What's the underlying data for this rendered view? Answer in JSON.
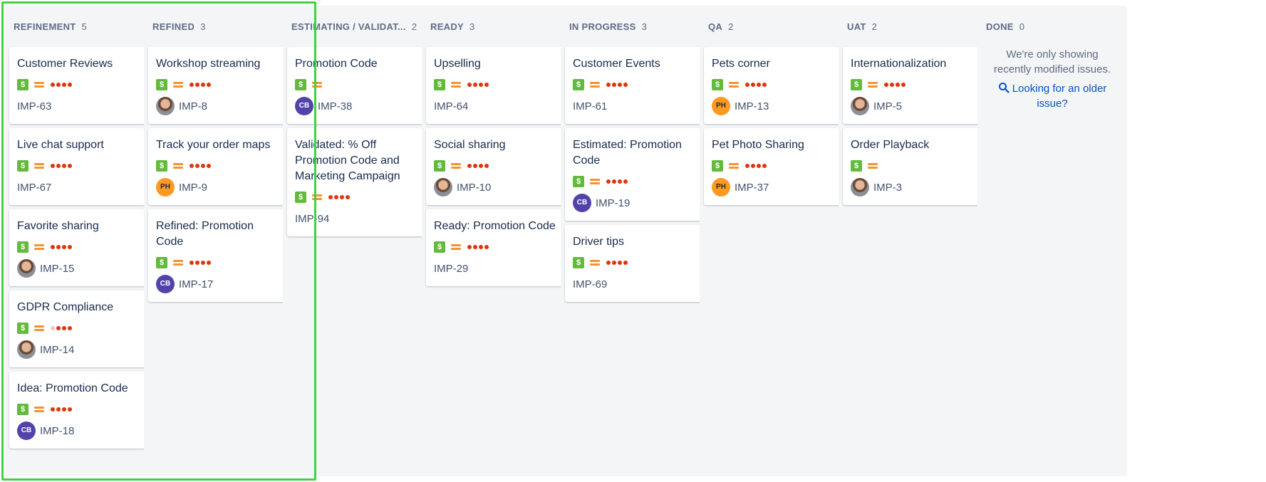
{
  "columns": [
    {
      "name": "REFINEMENT",
      "count": "5",
      "cards": [
        {
          "title": "Customer Reviews",
          "key": "IMP-63",
          "avatar": "none",
          "dots": 4
        },
        {
          "title": "Live chat support",
          "key": "IMP-67",
          "avatar": "none",
          "dots": 4
        },
        {
          "title": "Favorite sharing",
          "key": "IMP-15",
          "avatar": "photo",
          "dots": 4
        },
        {
          "title": "GDPR Compliance",
          "key": "IMP-14",
          "avatar": "photo",
          "dots": 3
        },
        {
          "title": "Idea: Promotion Code",
          "key": "IMP-18",
          "avatar": "CB",
          "dots": 4
        }
      ]
    },
    {
      "name": "REFINED",
      "count": "3",
      "cards": [
        {
          "title": "Workshop streaming",
          "key": "IMP-8",
          "avatar": "photo",
          "dots": 4
        },
        {
          "title": "Track your order maps",
          "key": "IMP-9",
          "avatar": "PH",
          "dots": 4
        },
        {
          "title": "Refined: Promotion Code",
          "key": "IMP-17",
          "avatar": "CB",
          "dots": 4
        }
      ]
    },
    {
      "name": "ESTIMATING / VALIDAT...",
      "count": "2",
      "cards": [
        {
          "title": "Promotion Code",
          "key": "IMP-38",
          "avatar": "CB",
          "dots": 0
        },
        {
          "title": "Validated: % Off Promotion Code and Marketing Campaign",
          "key": "IMP-94",
          "avatar": "none",
          "dots": 4
        }
      ]
    },
    {
      "name": "READY",
      "count": "3",
      "cards": [
        {
          "title": "Upselling",
          "key": "IMP-64",
          "avatar": "none",
          "dots": 4
        },
        {
          "title": "Social sharing",
          "key": "IMP-10",
          "avatar": "photo",
          "dots": 4
        },
        {
          "title": "Ready: Promotion Code",
          "key": "IMP-29",
          "avatar": "none",
          "dots": 4
        }
      ]
    },
    {
      "name": "IN PROGRESS",
      "count": "3",
      "cards": [
        {
          "title": "Customer Events",
          "key": "IMP-61",
          "avatar": "none",
          "dots": 4
        },
        {
          "title": "Estimated: Promotion Code",
          "key": "IMP-19",
          "avatar": "CB",
          "dots": 4
        },
        {
          "title": "Driver tips",
          "key": "IMP-69",
          "avatar": "none",
          "dots": 4
        }
      ]
    },
    {
      "name": "QA",
      "count": "2",
      "cards": [
        {
          "title": "Pets corner",
          "key": "IMP-13",
          "avatar": "PH",
          "dots": 4
        },
        {
          "title": "Pet Photo Sharing",
          "key": "IMP-37",
          "avatar": "PH",
          "dots": 4
        }
      ]
    },
    {
      "name": "UAT",
      "count": "2",
      "cards": [
        {
          "title": "Internationalization",
          "key": "IMP-5",
          "avatar": "photo",
          "dots": 4
        },
        {
          "title": "Order Playback",
          "key": "IMP-3",
          "avatar": "photo",
          "dots": 0
        }
      ]
    },
    {
      "name": "DONE",
      "count": "0",
      "cards": []
    }
  ],
  "done": {
    "message": "We're only showing recently modified issues.",
    "link": "Looking for an older issue?"
  },
  "icons": {
    "story": "story-type-icon",
    "priority": "medium-priority-icon",
    "estimate": "story-points-dots-icon"
  },
  "colors": {
    "story": "#63ba3c",
    "priority": "#f79232",
    "dots": "#de350b",
    "link": "#0052cc",
    "highlight": "#3fd43f"
  }
}
